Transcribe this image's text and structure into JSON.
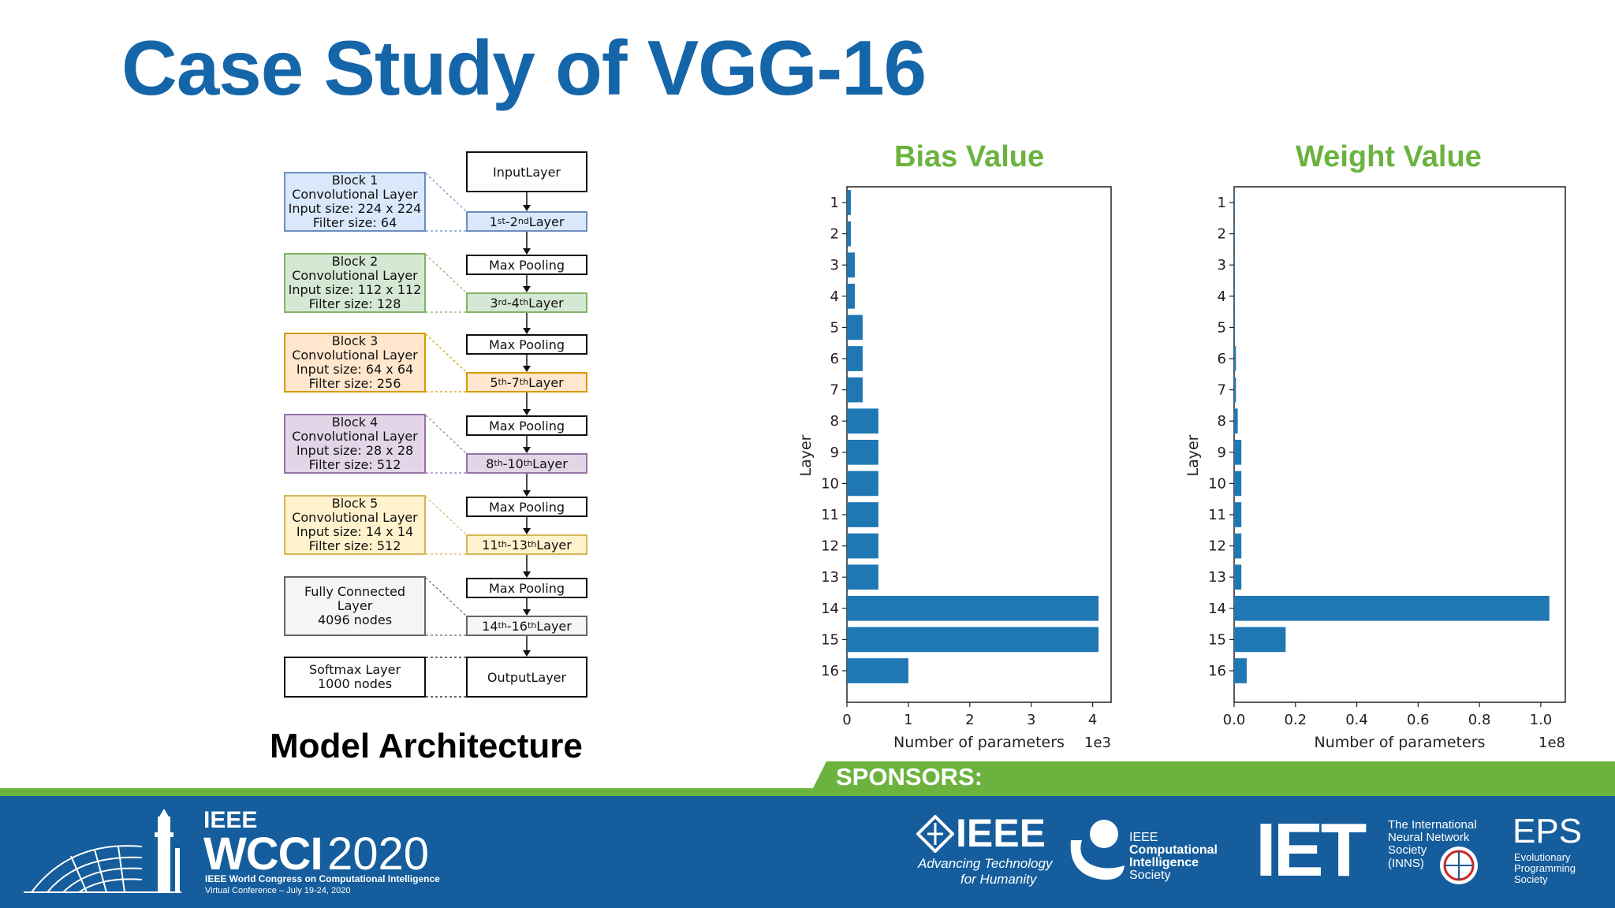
{
  "slide": {
    "title": "Case Study of VGG-16",
    "caption": "Model Architecture"
  },
  "architecture": {
    "input_node": "InputLayer",
    "output_node": "OutputLayer",
    "pool_label": "Max Pooling",
    "blocks": [
      {
        "lines": [
          "Block 1",
          "Convolutional Layer",
          "Input size: 224 x 224",
          "Filter size: 64"
        ],
        "layer": {
          "a": "1",
          "as": "st",
          "b": "2",
          "bs": "nd",
          "suffix": " Layer"
        },
        "fill": "#dae8fc",
        "stroke": "#6c8ebf"
      },
      {
        "lines": [
          "Block 2",
          "Convolutional Layer",
          "Input size: 112 x 112",
          "Filter size: 128"
        ],
        "layer": {
          "a": "3",
          "as": "rd",
          "b": "4",
          "bs": "th",
          "suffix": " Layer"
        },
        "fill": "#d5e8d4",
        "stroke": "#82b366"
      },
      {
        "lines": [
          "Block 3",
          "Convolutional Layer",
          "Input size: 64 x 64",
          "Filter size: 256"
        ],
        "layer": {
          "a": "5",
          "as": "th",
          "b": "7",
          "bs": "th",
          "suffix": " Layer"
        },
        "fill": "#ffe6cc",
        "stroke": "#d79b00"
      },
      {
        "lines": [
          "Block 4",
          "Convolutional Layer",
          "Input size: 28 x 28",
          "Filter size: 512"
        ],
        "layer": {
          "a": "8",
          "as": "th",
          "b": "10",
          "bs": "th",
          "suffix": " Layer"
        },
        "fill": "#e1d5e7",
        "stroke": "#9673a6"
      },
      {
        "lines": [
          "Block 5",
          "Convolutional Layer",
          "Input size: 14 x 14",
          "Filter size: 512"
        ],
        "layer": {
          "a": "11",
          "as": "th",
          "b": "13",
          "bs": "th",
          "suffix": " Layer"
        },
        "fill": "#fff2cc",
        "stroke": "#d6b656"
      },
      {
        "lines": [
          "Fully Connected Layer",
          "4096 nodes"
        ],
        "layer": {
          "a": "14",
          "as": "th",
          "b": "16",
          "bs": "th",
          "suffix": " Layer"
        },
        "fill": "#f5f5f5",
        "stroke": "#666666"
      },
      {
        "lines": [
          "Softmax Layer",
          "1000 nodes"
        ],
        "fill": "#ffffff",
        "stroke": "#111111"
      }
    ]
  },
  "chart_data": [
    {
      "type": "bar",
      "orientation": "horizontal",
      "title": "Bias Value",
      "xlabel": "Number of parameters",
      "ylabel": "Layer",
      "x_multiplier_label": "1e3",
      "xlim": [
        0,
        4.3
      ],
      "xticks": [
        "0",
        "1",
        "2",
        "3",
        "4"
      ],
      "categories": [
        "1",
        "2",
        "3",
        "4",
        "5",
        "6",
        "7",
        "8",
        "9",
        "10",
        "11",
        "12",
        "13",
        "14",
        "15",
        "16"
      ],
      "values": [
        0.064,
        0.064,
        0.128,
        0.128,
        0.256,
        0.256,
        0.256,
        0.512,
        0.512,
        0.512,
        0.512,
        0.512,
        0.512,
        4.096,
        4.096,
        1.0
      ],
      "color": "#1f77b4",
      "grid": false
    },
    {
      "type": "bar",
      "orientation": "horizontal",
      "title": "Weight Value",
      "xlabel": "Number of parameters",
      "ylabel": "Layer",
      "x_multiplier_label": "1e8",
      "xlim": [
        0,
        1.08
      ],
      "xticks": [
        "0.0",
        "0.2",
        "0.4",
        "0.6",
        "0.8",
        "1.0"
      ],
      "categories": [
        "1",
        "2",
        "3",
        "4",
        "5",
        "6",
        "7",
        "8",
        "9",
        "10",
        "11",
        "12",
        "13",
        "14",
        "15",
        "16"
      ],
      "values": [
        1.73e-05,
        0.00037,
        0.00074,
        0.0015,
        0.0029,
        0.0059,
        0.0059,
        0.0118,
        0.0236,
        0.0236,
        0.0236,
        0.0236,
        0.0236,
        1.028,
        0.168,
        0.041
      ],
      "color": "#1f77b4",
      "grid": false
    }
  ],
  "footer": {
    "sponsors_label": "SPONSORS:",
    "bar_color": "#155d9c",
    "stripe_color": "#6bb33e",
    "wcci": {
      "ieee": "IEEE",
      "name": "WCCI",
      "year": "2020",
      "sub": "IEEE World Congress on Computational Intelligence",
      "sub2": "Virtual Conference – July 19-24, 2020"
    },
    "ieee_logo": {
      "name": "IEEE",
      "tagline1": "Advancing Technology",
      "tagline2": "for Humanity"
    },
    "cis_logo": {
      "l1": "IEEE",
      "l2": "Computational",
      "l3": "Intelligence",
      "l4": "Society"
    },
    "iet_logo": {
      "name": "IET"
    },
    "inns_logo": {
      "l1": "The International",
      "l2": "Neural Network",
      "l3": "Society",
      "l4": "(INNS)"
    },
    "eps_logo": {
      "name": "EPS",
      "l1": "Evolutionary",
      "l2": "Programming",
      "l3": "Society"
    }
  }
}
